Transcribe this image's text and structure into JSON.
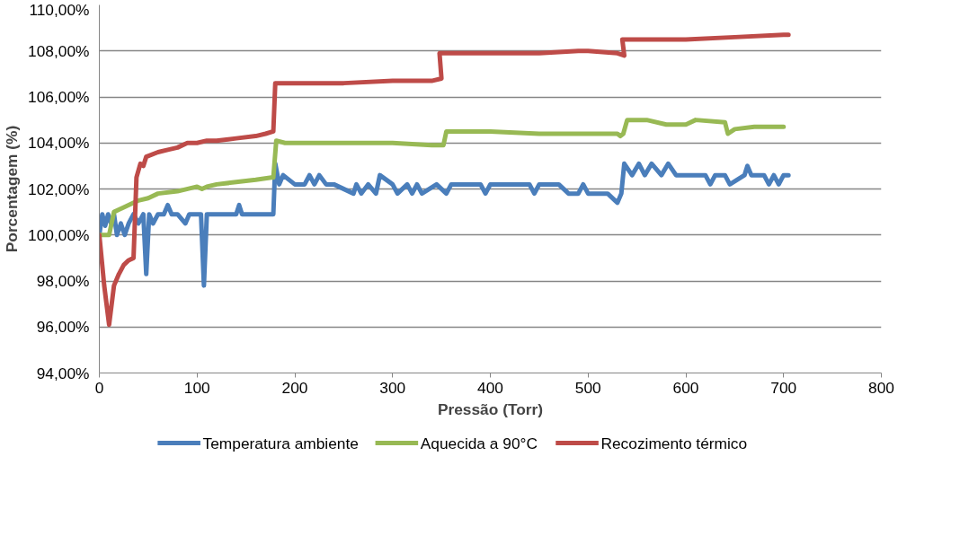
{
  "chart_data": {
    "type": "line",
    "xlabel": "Pressão (Torr)",
    "ylabel": "Porcentagem (%)",
    "xlim": [
      0,
      800
    ],
    "xticks": [
      0,
      100,
      200,
      300,
      400,
      500,
      600,
      700,
      800
    ],
    "ylim": [
      94,
      110
    ],
    "yticks": [
      {
        "value": 94,
        "label": "94,00%"
      },
      {
        "value": 96,
        "label": "96,00%"
      },
      {
        "value": 98,
        "label": "98,00%"
      },
      {
        "value": 100,
        "label": "100,00%"
      },
      {
        "value": 102,
        "label": "102,00%"
      },
      {
        "value": 104,
        "label": "104,00%"
      },
      {
        "value": 106,
        "label": "106,00%"
      },
      {
        "value": 108,
        "label": "108,00%"
      },
      {
        "value": 110,
        "label": "110,00%"
      }
    ],
    "grid": "y",
    "legend": "bottom",
    "marker": "none",
    "line_style": "solid",
    "series": [
      {
        "name": "Temperatura ambiente",
        "color": "#4a7ebb",
        "x": [
          0,
          3,
          6,
          9,
          12,
          15,
          18,
          22,
          26,
          30,
          35,
          40,
          45,
          48,
          51,
          55,
          60,
          66,
          70,
          74,
          80,
          88,
          92,
          96,
          104,
          107,
          110,
          140,
          143,
          146,
          178,
          180,
          184,
          188,
          200,
          210,
          215,
          220,
          225,
          232,
          240,
          260,
          263,
          268,
          275,
          283,
          287,
          300,
          305,
          315,
          320,
          325,
          330,
          345,
          355,
          360,
          390,
          395,
          400,
          440,
          445,
          450,
          470,
          480,
          490,
          495,
          500,
          520,
          530,
          534,
          537,
          545,
          552,
          558,
          565,
          575,
          582,
          590,
          620,
          625,
          630,
          640,
          645,
          660,
          663,
          667,
          680,
          685,
          690,
          695,
          700,
          705
        ],
        "values": [
          100.0,
          100.9,
          100.4,
          100.9,
          100.5,
          100.9,
          100.0,
          100.5,
          100.0,
          100.5,
          100.9,
          100.5,
          100.9,
          98.3,
          100.9,
          100.5,
          100.9,
          100.9,
          101.3,
          100.9,
          100.9,
          100.5,
          100.9,
          100.9,
          100.9,
          97.8,
          100.9,
          100.9,
          101.3,
          100.9,
          100.9,
          103.1,
          102.2,
          102.6,
          102.2,
          102.2,
          102.6,
          102.2,
          102.6,
          102.2,
          102.2,
          101.8,
          102.2,
          101.8,
          102.2,
          101.8,
          102.6,
          102.2,
          101.8,
          102.2,
          101.8,
          102.2,
          101.8,
          102.2,
          101.8,
          102.2,
          102.2,
          101.8,
          102.2,
          102.2,
          101.8,
          102.2,
          102.2,
          101.8,
          101.8,
          102.2,
          101.8,
          101.8,
          101.4,
          101.8,
          103.1,
          102.6,
          103.1,
          102.6,
          103.1,
          102.6,
          103.1,
          102.6,
          102.6,
          102.2,
          102.6,
          102.6,
          102.2,
          102.6,
          103.0,
          102.6,
          102.6,
          102.2,
          102.6,
          102.2,
          102.6,
          102.6
        ]
      },
      {
        "name": "Aquecida a 90°C",
        "color": "#98b954",
        "x": [
          0,
          5,
          10,
          15,
          20,
          25,
          40,
          50,
          60,
          80,
          100,
          105,
          110,
          120,
          140,
          160,
          176,
          178,
          181,
          190,
          250,
          300,
          340,
          352,
          355,
          360,
          400,
          450,
          500,
          530,
          533,
          536,
          540,
          560,
          580,
          600,
          610,
          640,
          643,
          650,
          670,
          690,
          700
        ],
        "values": [
          100.0,
          100.0,
          100.0,
          101.0,
          101.1,
          101.2,
          101.5,
          101.6,
          101.8,
          101.9,
          102.1,
          102.0,
          102.1,
          102.2,
          102.3,
          102.4,
          102.5,
          102.5,
          104.1,
          104.0,
          104.0,
          104.0,
          103.9,
          103.9,
          104.5,
          104.5,
          104.5,
          104.4,
          104.4,
          104.4,
          104.3,
          104.4,
          105.0,
          105.0,
          104.8,
          104.8,
          105.0,
          104.9,
          104.4,
          104.6,
          104.7,
          104.7,
          104.7
        ]
      },
      {
        "name": "Recozimento térmico",
        "color": "#be4b48",
        "x": [
          0,
          5,
          10,
          15,
          20,
          25,
          30,
          35,
          38,
          42,
          45,
          48,
          60,
          70,
          80,
          90,
          100,
          110,
          120,
          140,
          160,
          170,
          178,
          180,
          200,
          250,
          300,
          340,
          350,
          348,
          400,
          450,
          490,
          500,
          530,
          537,
          535,
          560,
          600,
          650,
          700,
          705
        ],
        "values": [
          100.0,
          97.8,
          96.1,
          97.8,
          98.3,
          98.7,
          98.9,
          99.0,
          102.5,
          103.1,
          103.0,
          103.4,
          103.6,
          103.7,
          103.8,
          104.0,
          104.0,
          104.1,
          104.1,
          104.2,
          104.3,
          104.4,
          104.5,
          106.6,
          106.6,
          106.6,
          106.7,
          106.7,
          106.8,
          107.9,
          107.9,
          107.9,
          108.0,
          108.0,
          107.9,
          107.8,
          108.5,
          108.5,
          108.5,
          108.6,
          108.7,
          108.7
        ]
      }
    ]
  }
}
